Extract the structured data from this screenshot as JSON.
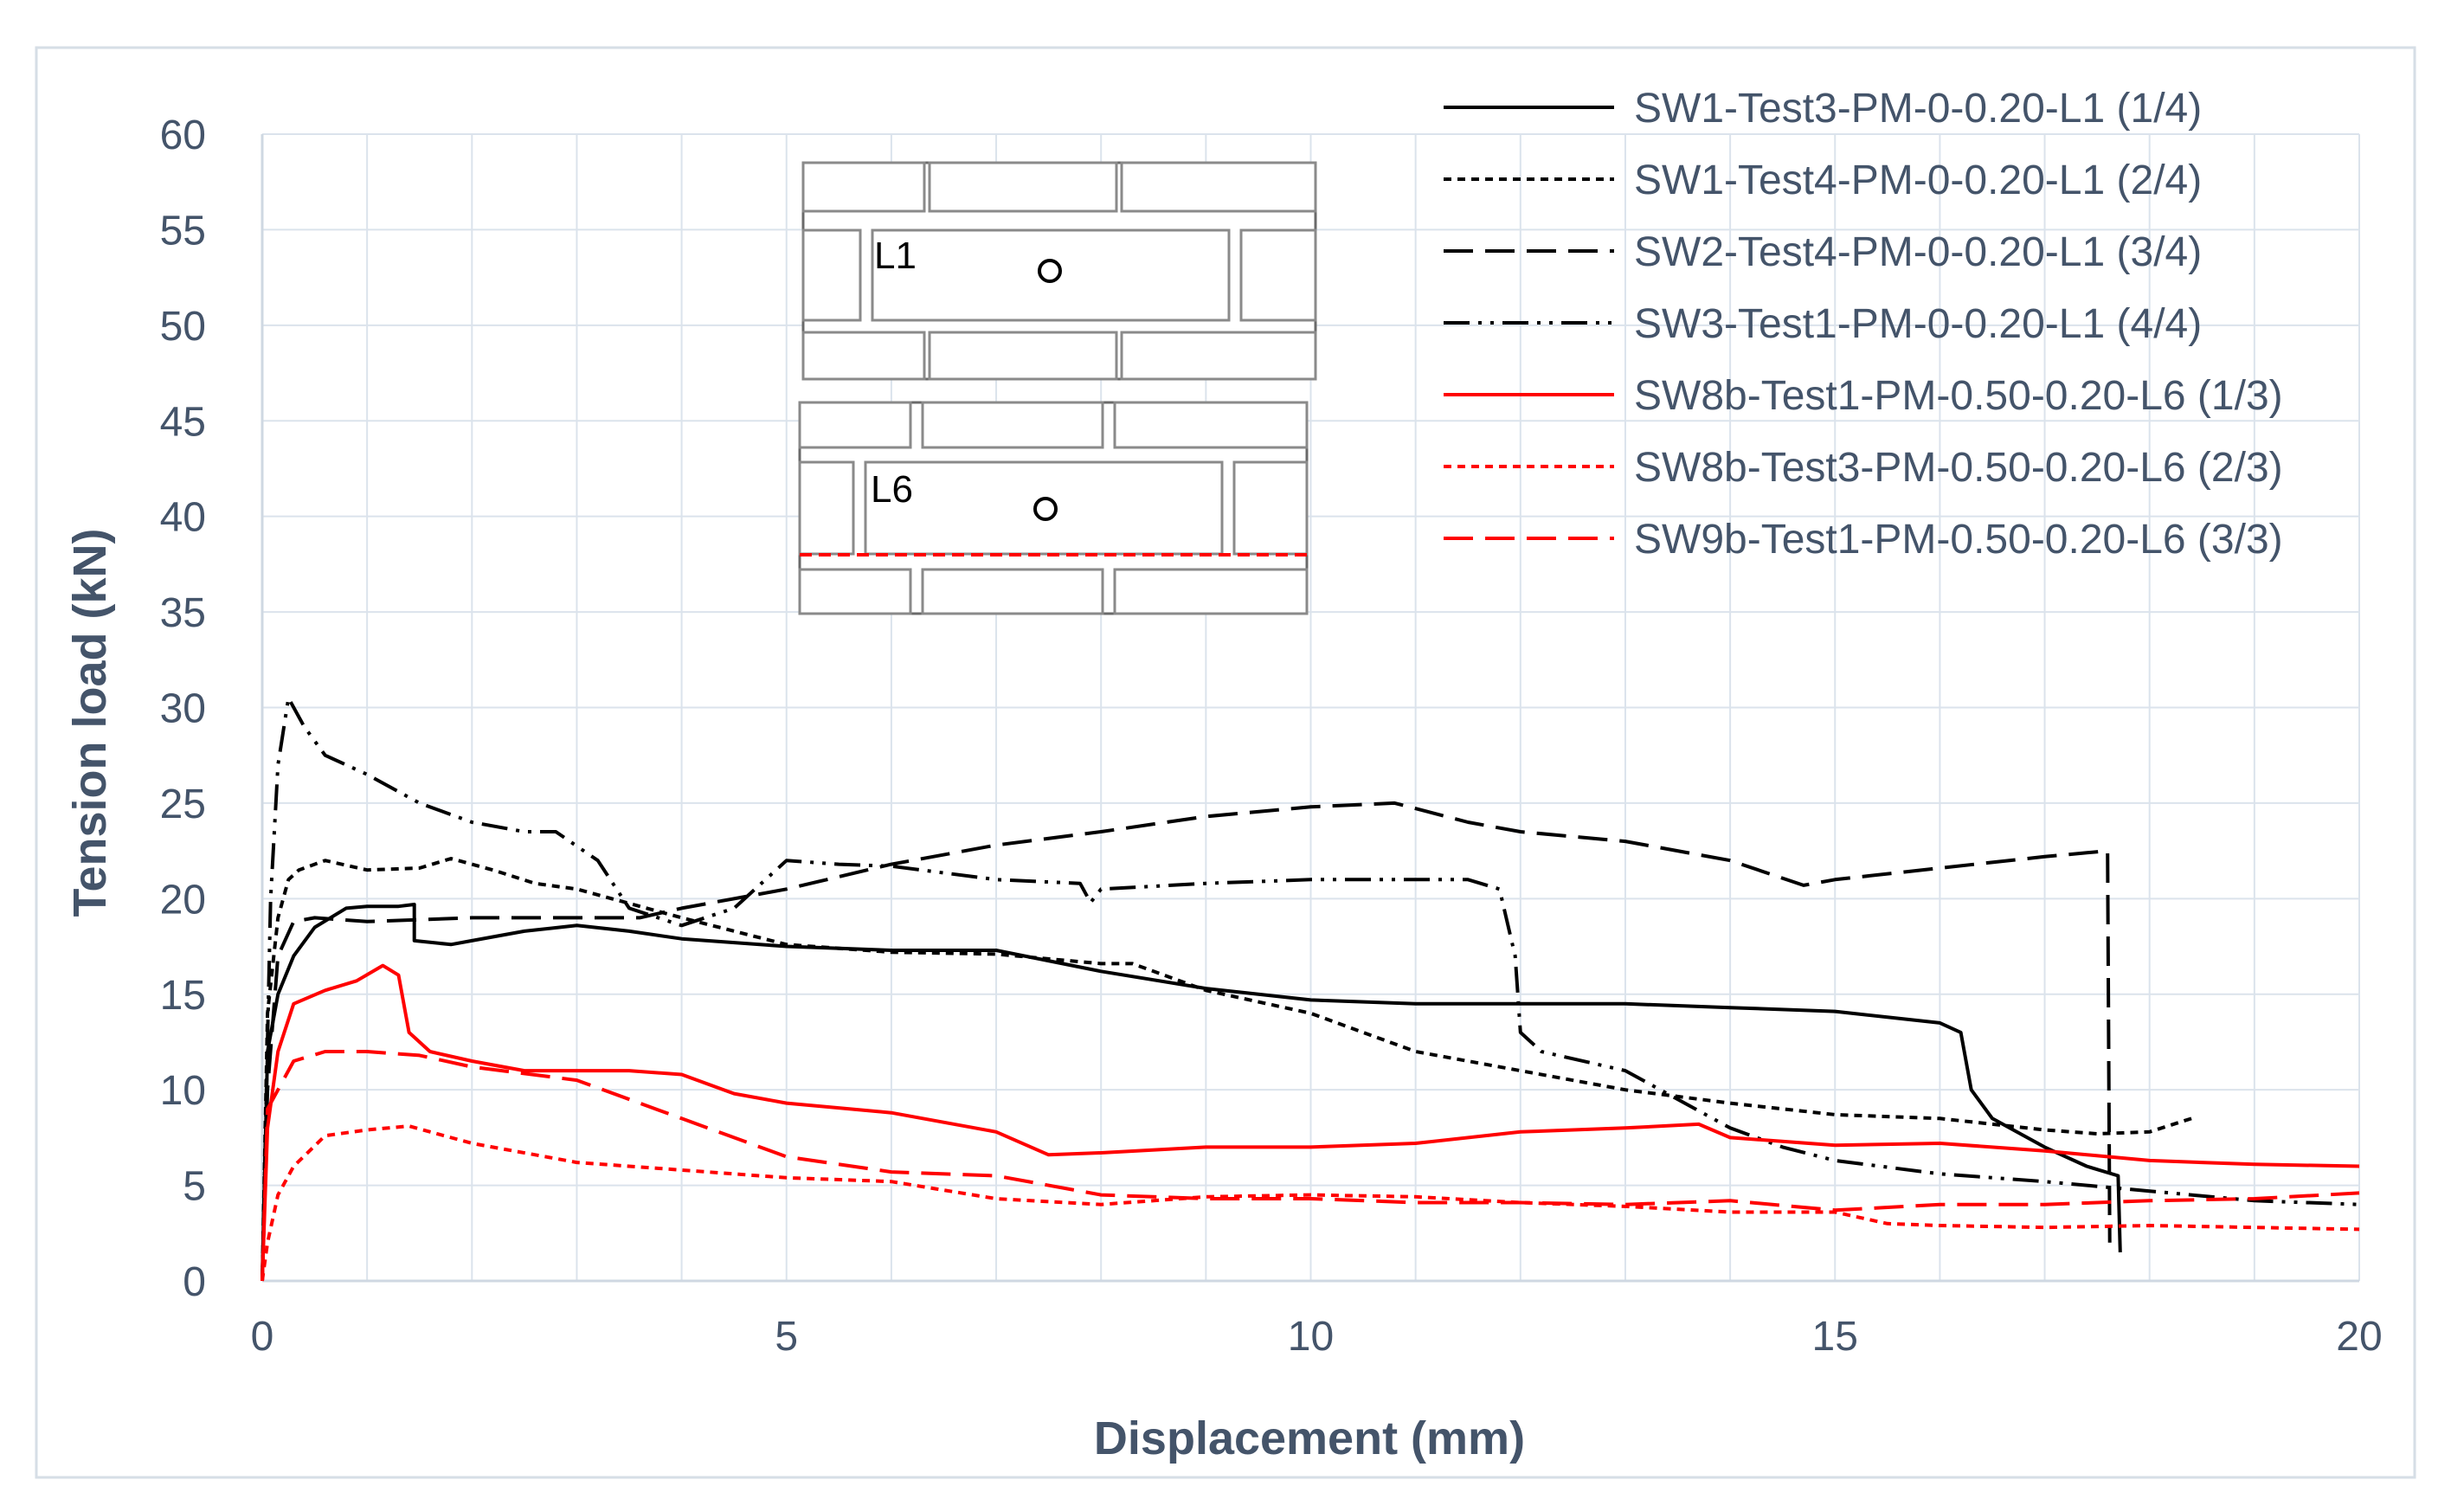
{
  "chart_data": {
    "type": "line",
    "title": "",
    "xlabel": "Displacement (mm)",
    "ylabel": "Tension load (kN)",
    "xlim": [
      0,
      20
    ],
    "ylim": [
      0,
      60
    ],
    "x_ticks": [
      0,
      5,
      10,
      15,
      20
    ],
    "y_ticks": [
      0,
      5,
      10,
      15,
      20,
      25,
      30,
      35,
      40,
      45,
      50,
      55,
      60
    ],
    "grid": true,
    "legend_position": "top-right",
    "series": [
      {
        "name": "SW1-Test3-PM-0-0.20-L1 (1/4)",
        "color": "#000000",
        "dash": "solid",
        "points": [
          [
            0,
            0
          ],
          [
            0.05,
            12
          ],
          [
            0.15,
            15
          ],
          [
            0.3,
            17
          ],
          [
            0.5,
            18.5
          ],
          [
            0.8,
            19.5
          ],
          [
            1.0,
            19.6
          ],
          [
            1.3,
            19.6
          ],
          [
            1.45,
            19.7
          ],
          [
            1.45,
            17.8
          ],
          [
            1.8,
            17.6
          ],
          [
            2.0,
            17.8
          ],
          [
            2.5,
            18.3
          ],
          [
            3.0,
            18.6
          ],
          [
            3.5,
            18.3
          ],
          [
            4,
            17.9
          ],
          [
            5,
            17.5
          ],
          [
            6,
            17.3
          ],
          [
            7,
            17.3
          ],
          [
            8,
            16.2
          ],
          [
            9,
            15.3
          ],
          [
            10,
            14.7
          ],
          [
            11,
            14.5
          ],
          [
            12,
            14.5
          ],
          [
            13,
            14.5
          ],
          [
            14,
            14.3
          ],
          [
            15,
            14.1
          ],
          [
            16,
            13.5
          ],
          [
            16.2,
            13.0
          ],
          [
            16.3,
            10
          ],
          [
            16.5,
            8.5
          ],
          [
            17,
            7
          ],
          [
            17.4,
            6
          ],
          [
            17.7,
            5.5
          ],
          [
            17.72,
            1.5
          ]
        ]
      },
      {
        "name": "SW1-Test4-PM-0-0.20-L1 (2/4)",
        "color": "#000000",
        "dash": "short",
        "points": [
          [
            0,
            0
          ],
          [
            0.05,
            14
          ],
          [
            0.15,
            19
          ],
          [
            0.25,
            21
          ],
          [
            0.35,
            21.5
          ],
          [
            0.6,
            22
          ],
          [
            1.0,
            21.5
          ],
          [
            1.5,
            21.6
          ],
          [
            1.8,
            22.1
          ],
          [
            2.2,
            21.5
          ],
          [
            2.6,
            20.8
          ],
          [
            3.0,
            20.5
          ],
          [
            4,
            19
          ],
          [
            5,
            17.6
          ],
          [
            6,
            17.2
          ],
          [
            7,
            17.1
          ],
          [
            8,
            16.6
          ],
          [
            8.3,
            16.6
          ],
          [
            9,
            15.2
          ],
          [
            10,
            14
          ],
          [
            11,
            12
          ],
          [
            12,
            11
          ],
          [
            13,
            10
          ],
          [
            14,
            9.3
          ],
          [
            15,
            8.7
          ],
          [
            16,
            8.5
          ],
          [
            17,
            7.9
          ],
          [
            17.5,
            7.7
          ],
          [
            18,
            7.8
          ],
          [
            18.4,
            8.5
          ]
        ]
      },
      {
        "name": "SW2-Test4-PM-0-0.20-L1 (3/4)",
        "color": "#000000",
        "dash": "long",
        "points": [
          [
            0,
            0
          ],
          [
            0.05,
            10
          ],
          [
            0.15,
            17
          ],
          [
            0.3,
            18.8
          ],
          [
            0.5,
            19
          ],
          [
            1.0,
            18.8
          ],
          [
            2,
            19
          ],
          [
            3,
            19
          ],
          [
            3.6,
            19
          ],
          [
            4,
            19.5
          ],
          [
            5,
            20.5
          ],
          [
            6,
            21.8
          ],
          [
            7,
            22.8
          ],
          [
            8,
            23.5
          ],
          [
            9,
            24.3
          ],
          [
            10,
            24.8
          ],
          [
            10.8,
            25
          ],
          [
            11.5,
            24
          ],
          [
            12,
            23.5
          ],
          [
            13,
            23
          ],
          [
            14,
            22
          ],
          [
            14.7,
            20.7
          ],
          [
            15,
            21
          ],
          [
            16,
            21.6
          ],
          [
            17,
            22.2
          ],
          [
            17.6,
            22.5
          ],
          [
            17.62,
            2
          ]
        ]
      },
      {
        "name": "SW3-Test1-PM-0-0.20-L1 (4/4)",
        "color": "#000000",
        "dash": "dashdotdot",
        "points": [
          [
            0,
            0
          ],
          [
            0.08,
            20
          ],
          [
            0.15,
            27
          ],
          [
            0.25,
            30.5
          ],
          [
            0.4,
            29
          ],
          [
            0.6,
            27.5
          ],
          [
            1.0,
            26.5
          ],
          [
            1.5,
            25
          ],
          [
            2,
            24
          ],
          [
            2.5,
            23.5
          ],
          [
            2.8,
            23.5
          ],
          [
            3.2,
            22
          ],
          [
            3.5,
            19.5
          ],
          [
            4,
            18.6
          ],
          [
            4.5,
            19.5
          ],
          [
            5,
            22
          ],
          [
            5.5,
            21.8
          ],
          [
            6,
            21.7
          ],
          [
            7,
            21
          ],
          [
            7.8,
            20.8
          ],
          [
            7.9,
            19.8
          ],
          [
            8,
            20.5
          ],
          [
            9,
            20.8
          ],
          [
            10,
            21
          ],
          [
            11,
            21
          ],
          [
            11.5,
            21
          ],
          [
            11.8,
            20.5
          ],
          [
            11.95,
            17
          ],
          [
            12,
            13
          ],
          [
            12.2,
            12
          ],
          [
            13,
            11
          ],
          [
            14,
            8
          ],
          [
            14.5,
            7
          ],
          [
            15,
            6.3
          ],
          [
            16,
            5.6
          ],
          [
            17,
            5.2
          ],
          [
            18,
            4.7
          ],
          [
            19,
            4.2
          ],
          [
            20,
            4.0
          ]
        ]
      },
      {
        "name": "SW8b-Test1-PM-0.50-0.20-L6 (1/3)",
        "color": "#ff0000",
        "dash": "solid",
        "points": [
          [
            0,
            0
          ],
          [
            0.05,
            8
          ],
          [
            0.15,
            12
          ],
          [
            0.3,
            14.5
          ],
          [
            0.6,
            15.2
          ],
          [
            0.9,
            15.7
          ],
          [
            1.15,
            16.5
          ],
          [
            1.3,
            16
          ],
          [
            1.4,
            13
          ],
          [
            1.6,
            12
          ],
          [
            2,
            11.5
          ],
          [
            2.5,
            11
          ],
          [
            3,
            11
          ],
          [
            3.5,
            11
          ],
          [
            4,
            10.8
          ],
          [
            4.5,
            9.8
          ],
          [
            5,
            9.3
          ],
          [
            6,
            8.8
          ],
          [
            7,
            7.8
          ],
          [
            7.5,
            6.6
          ],
          [
            8,
            6.7
          ],
          [
            9,
            7
          ],
          [
            10,
            7
          ],
          [
            11,
            7.2
          ],
          [
            12,
            7.8
          ],
          [
            13,
            8
          ],
          [
            13.7,
            8.2
          ],
          [
            14,
            7.5
          ],
          [
            15,
            7.1
          ],
          [
            16,
            7.2
          ],
          [
            17,
            6.8
          ],
          [
            18,
            6.3
          ],
          [
            19,
            6.1
          ],
          [
            20,
            6.0
          ]
        ]
      },
      {
        "name": "SW8b-Test3-PM-0.50-0.20-L6 (2/3)",
        "color": "#ff0000",
        "dash": "short",
        "points": [
          [
            0,
            0
          ],
          [
            0.05,
            2
          ],
          [
            0.15,
            4.5
          ],
          [
            0.3,
            6
          ],
          [
            0.6,
            7.6
          ],
          [
            1,
            7.9
          ],
          [
            1.4,
            8.1
          ],
          [
            2,
            7.2
          ],
          [
            3,
            6.2
          ],
          [
            4,
            5.8
          ],
          [
            5,
            5.4
          ],
          [
            6,
            5.2
          ],
          [
            7,
            4.3
          ],
          [
            8,
            4.0
          ],
          [
            9,
            4.4
          ],
          [
            10,
            4.5
          ],
          [
            11,
            4.4
          ],
          [
            12,
            4.1
          ],
          [
            13,
            3.9
          ],
          [
            14,
            3.6
          ],
          [
            15,
            3.6
          ],
          [
            15.5,
            3.0
          ],
          [
            16,
            2.9
          ],
          [
            17,
            2.8
          ],
          [
            18,
            2.9
          ],
          [
            19,
            2.8
          ],
          [
            20,
            2.7
          ]
        ]
      },
      {
        "name": "SW9b-Test1-PM-0.50-0.20-L6 (3/3)",
        "color": "#ff0000",
        "dash": "long",
        "points": [
          [
            0,
            0
          ],
          [
            0.05,
            9
          ],
          [
            0.15,
            10
          ],
          [
            0.3,
            11.5
          ],
          [
            0.6,
            12
          ],
          [
            1,
            12
          ],
          [
            1.5,
            11.8
          ],
          [
            2,
            11.2
          ],
          [
            3,
            10.5
          ],
          [
            4,
            8.5
          ],
          [
            5,
            6.5
          ],
          [
            6,
            5.7
          ],
          [
            7,
            5.5
          ],
          [
            8,
            4.5
          ],
          [
            9,
            4.3
          ],
          [
            10,
            4.3
          ],
          [
            11,
            4.1
          ],
          [
            12,
            4.1
          ],
          [
            13,
            4.0
          ],
          [
            14,
            4.2
          ],
          [
            15,
            3.7
          ],
          [
            16,
            4.0
          ],
          [
            17,
            4.0
          ],
          [
            18,
            4.2
          ],
          [
            19,
            4.3
          ],
          [
            20,
            4.6
          ]
        ]
      }
    ],
    "inset": {
      "labels": [
        "L1",
        "L6"
      ]
    }
  }
}
